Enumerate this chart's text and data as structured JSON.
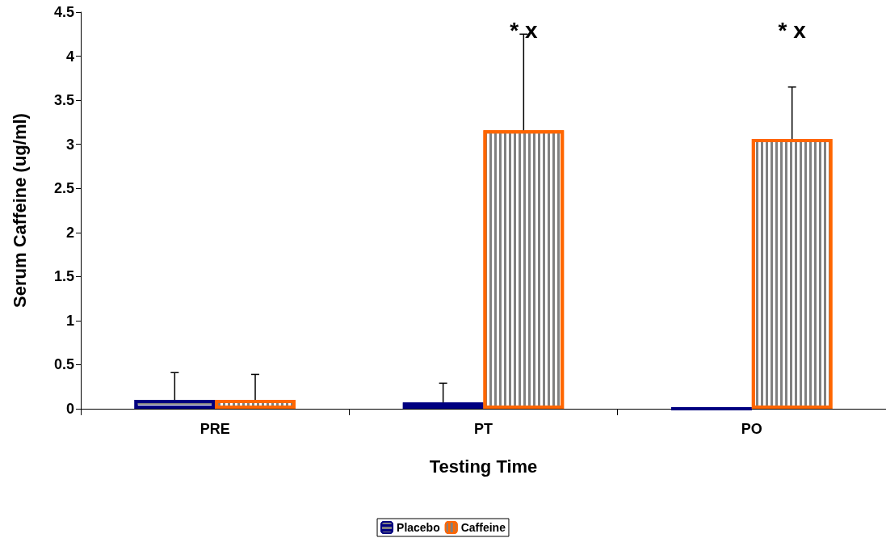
{
  "chart_data": {
    "type": "bar",
    "xlabel": "Testing Time",
    "ylabel": "Serum Caffeine (ug/ml)",
    "categories": [
      "PRE",
      "PT",
      "PO"
    ],
    "series": [
      {
        "name": "Placebo",
        "color": "#000080",
        "values": [
          0.1,
          0.07,
          0
        ],
        "errors": [
          [
            0.1,
            0.41
          ],
          [
            0.07,
            0.29
          ],
          null
        ]
      },
      {
        "name": "Caffeine",
        "color": "#ff6600",
        "values": [
          0.1,
          3.16,
          3.06
        ],
        "errors": [
          [
            0.1,
            0.39
          ],
          [
            3.16,
            4.25
          ],
          [
            3.06,
            3.65
          ]
        ]
      }
    ],
    "ylim": [
      0,
      4.5
    ],
    "yticks": [
      0,
      0.5,
      1,
      1.5,
      2,
      2.5,
      3,
      3.5,
      4,
      4.5
    ],
    "grid": false,
    "legend": "bottom",
    "annotations": [
      "* x",
      "* x"
    ]
  }
}
